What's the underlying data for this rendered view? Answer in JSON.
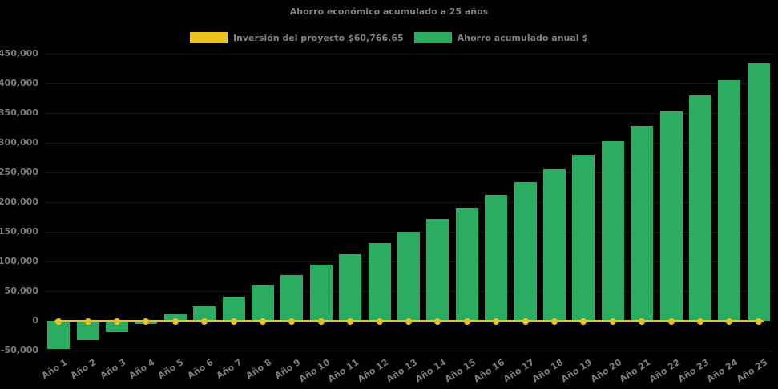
{
  "title": "Ahorro económico acumulado a 25 años",
  "legend": [
    {
      "label": "Inversión del proyecto $60,766.65",
      "color": "#EAC31D",
      "type": "line"
    },
    {
      "label": "Ahorro acumulado anual $",
      "color": "#2BAC60",
      "type": "bar"
    }
  ],
  "colors": {
    "background": "#000000",
    "text": "#7d7d7d",
    "bar_green": "#2BAC60",
    "line_yellow": "#EAC31D",
    "gridline": "#161616"
  },
  "chart_data": {
    "type": "bar",
    "title": "Ahorro económico acumulado a 25 años",
    "categories": [
      "Año 1",
      "Año 2",
      "Año 3",
      "Año 4",
      "Año 5",
      "Año 6",
      "Año 7",
      "Año 8",
      "Año 9",
      "Año 10",
      "Año 11",
      "Año 12",
      "Año 13",
      "Año 14",
      "Año 15",
      "Año 16",
      "Año 17",
      "Año 18",
      "Año 19",
      "Año 20",
      "Año 21",
      "Año 22",
      "Año 23",
      "Año 24",
      "Año 25"
    ],
    "series": [
      {
        "name": "Ahorro acumulado anual $",
        "type": "bar",
        "color": "#2BAC60",
        "values": [
          -47000,
          -33000,
          -18500,
          -5500,
          10500,
          24500,
          40500,
          60500,
          77500,
          94500,
          112000,
          131500,
          149500,
          171000,
          190500,
          212500,
          234000,
          256000,
          279500,
          303000,
          328500,
          352500,
          379500,
          405500,
          434000
        ]
      },
      {
        "name": "Inversión del proyecto $60,766.65",
        "type": "line",
        "color": "#EAC31D",
        "marker": "circle",
        "values": [
          0,
          0,
          0,
          0,
          0,
          0,
          0,
          0,
          0,
          0,
          0,
          0,
          0,
          0,
          0,
          0,
          0,
          0,
          0,
          0,
          0,
          0,
          0,
          0,
          0
        ]
      }
    ],
    "ylim": [
      -50000,
      450000
    ],
    "ytick_step": 50000,
    "yticks": [
      {
        "value": -50000,
        "label": "-50,000"
      },
      {
        "value": 0,
        "label": "0"
      },
      {
        "value": 50000,
        "label": "50,000"
      },
      {
        "value": 100000,
        "label": "100,000"
      },
      {
        "value": 150000,
        "label": "150,000"
      },
      {
        "value": 200000,
        "label": "200,000"
      },
      {
        "value": 250000,
        "label": "250,000"
      },
      {
        "value": 300000,
        "label": "300,000"
      },
      {
        "value": 350000,
        "label": "350,000"
      },
      {
        "value": 400000,
        "label": "400,000"
      },
      {
        "value": 450000,
        "label": "450,000"
      }
    ],
    "grid": "horizontal",
    "legend_position": "top-center",
    "x_label_rotation_deg": 33
  }
}
